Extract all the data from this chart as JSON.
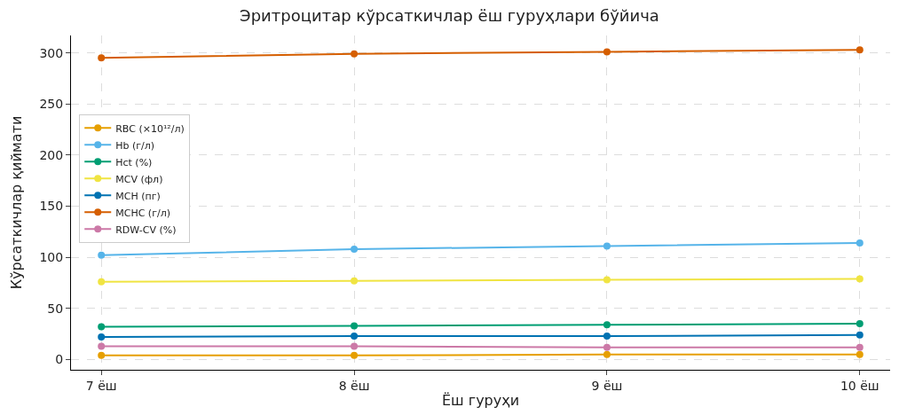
{
  "chart_data": {
    "type": "line",
    "title": "Эритроцитар кўрсаткичлар ёш гуруҳлари бўйича",
    "xlabel": "Ёш гуруҳи",
    "ylabel": "Кўрсаткичлар қиймати",
    "categories": [
      "7 ёш",
      "8 ёш",
      "9 ёш",
      "10 ёш"
    ],
    "series": [
      {
        "name": "RBC (×10¹²/л)",
        "color": "#e69f00",
        "values": [
          4,
          4,
          5,
          5
        ]
      },
      {
        "name": "Hb (г/л)",
        "color": "#56b4e9",
        "values": [
          102,
          108,
          111,
          114
        ]
      },
      {
        "name": "Hct (%)",
        "color": "#009e73",
        "values": [
          32,
          33,
          34,
          35
        ]
      },
      {
        "name": "MCV (фл)",
        "color": "#f0e442",
        "values": [
          76,
          77,
          78,
          79
        ]
      },
      {
        "name": "MCH (пг)",
        "color": "#0072b2",
        "values": [
          22,
          23,
          23,
          24
        ]
      },
      {
        "name": "MCHC (г/л)",
        "color": "#d55e00",
        "values": [
          295,
          299,
          301,
          303
        ]
      },
      {
        "name": "RDW-CV (%)",
        "color": "#cc79a7",
        "values": [
          13,
          13,
          12,
          12
        ]
      }
    ],
    "ylim": [
      -10,
      317
    ],
    "yticks": [
      0,
      50,
      100,
      150,
      200,
      250,
      300
    ],
    "grid": true,
    "legend": "left",
    "marker": "circle",
    "line_style": "solid"
  }
}
